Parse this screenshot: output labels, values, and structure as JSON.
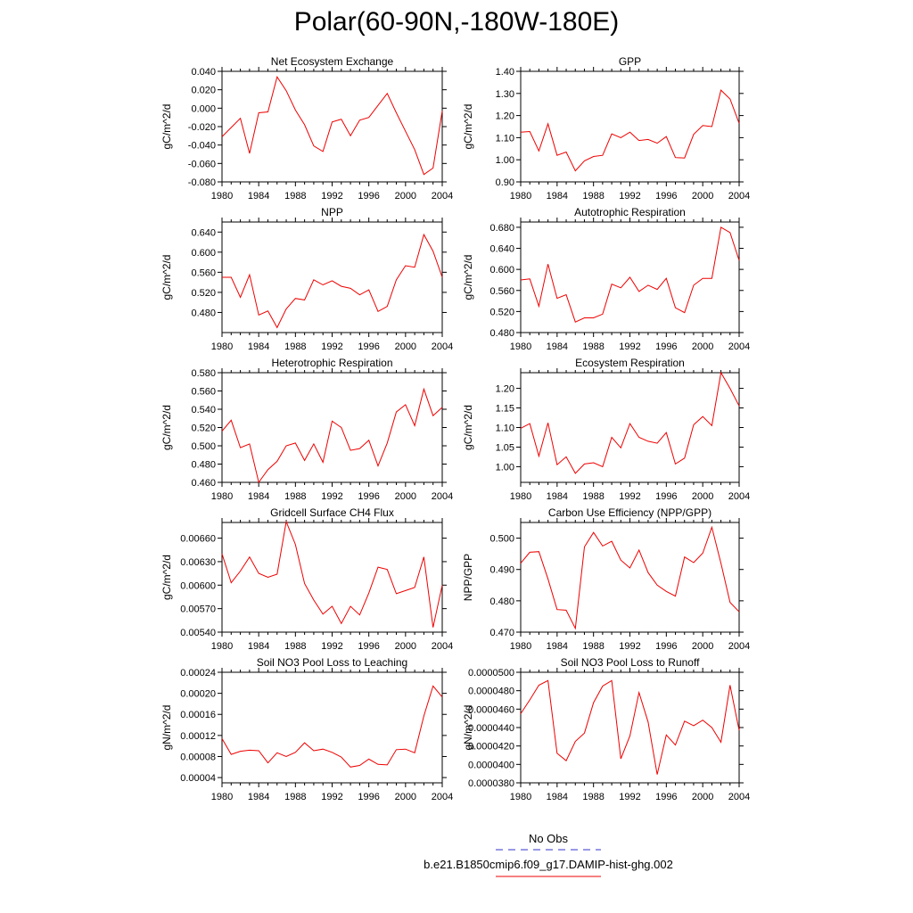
{
  "figure": {
    "title": "Polar(60-90N,-180W-180E)",
    "line_color": "#ee0000",
    "obs_color": "#3333cc"
  },
  "legend": {
    "obs_label": "No Obs",
    "model_label": "b.e21.B1850cmip6.f09_g17.DAMIP-hist-ghg.002"
  },
  "chart_data": [
    {
      "type": "line",
      "title": "Net Ecosystem Exchange",
      "ylabel": "gC/m^2/d",
      "xlim": [
        1980,
        2004
      ],
      "xticks": [
        "1980",
        "1984",
        "1988",
        "1992",
        "1996",
        "2000",
        "2004"
      ],
      "ylim": [
        -0.08,
        0.04
      ],
      "yticks": [
        "-0.080",
        "-0.060",
        "-0.040",
        "-0.020",
        "0.000",
        "0.020",
        "0.040"
      ],
      "x": [
        1980,
        1981,
        1982,
        1983,
        1984,
        1985,
        1986,
        1987,
        1988,
        1989,
        1990,
        1991,
        1992,
        1993,
        1994,
        1995,
        1996,
        1997,
        1998,
        1999,
        2000,
        2001,
        2002,
        2003,
        2004
      ],
      "series": [
        {
          "values": [
            -0.031,
            -0.021,
            -0.011,
            -0.049,
            -0.005,
            -0.004,
            0.034,
            0.019,
            -0.002,
            -0.018,
            -0.041,
            -0.047,
            -0.015,
            -0.012,
            -0.03,
            -0.013,
            -0.01,
            0.003,
            0.016,
            -0.005,
            -0.025,
            -0.045,
            -0.072,
            -0.065,
            -0.003
          ]
        }
      ]
    },
    {
      "type": "line",
      "title": "GPP",
      "ylabel": "gC/m^2/d",
      "xlim": [
        1980,
        2004
      ],
      "xticks": [
        "1980",
        "1984",
        "1988",
        "1992",
        "1996",
        "2000",
        "2004"
      ],
      "ylim": [
        0.9,
        1.4
      ],
      "yticks": [
        "0.90",
        "1.00",
        "1.10",
        "1.20",
        "1.30",
        "1.40"
      ],
      "x": [
        1980,
        1981,
        1982,
        1983,
        1984,
        1985,
        1986,
        1987,
        1988,
        1989,
        1990,
        1991,
        1992,
        1993,
        1994,
        1995,
        1996,
        1997,
        1998,
        1999,
        2000,
        2001,
        2002,
        2003,
        2004
      ],
      "series": [
        {
          "values": [
            1.125,
            1.128,
            1.04,
            1.163,
            1.02,
            1.035,
            0.95,
            0.995,
            1.015,
            1.02,
            1.117,
            1.1,
            1.125,
            1.087,
            1.092,
            1.075,
            1.105,
            1.01,
            1.008,
            1.115,
            1.155,
            1.15,
            1.315,
            1.275,
            1.165
          ]
        }
      ]
    },
    {
      "type": "line",
      "title": "NPP",
      "ylabel": "gC/m^2/d",
      "xlim": [
        1980,
        2004
      ],
      "xticks": [
        "1980",
        "1984",
        "1988",
        "1992",
        "1996",
        "2000",
        "2004"
      ],
      "ylim": [
        0.44,
        0.66
      ],
      "yticks": [
        "0.480",
        "0.520",
        "0.560",
        "0.600",
        "0.640"
      ],
      "x": [
        1980,
        1981,
        1982,
        1983,
        1984,
        1985,
        1986,
        1987,
        1988,
        1989,
        1990,
        1991,
        1992,
        1993,
        1994,
        1995,
        1996,
        1997,
        1998,
        1999,
        2000,
        2001,
        2002,
        2003,
        2004
      ],
      "series": [
        {
          "values": [
            0.55,
            0.55,
            0.51,
            0.555,
            0.475,
            0.483,
            0.45,
            0.487,
            0.508,
            0.505,
            0.545,
            0.535,
            0.543,
            0.532,
            0.528,
            0.515,
            0.525,
            0.482,
            0.492,
            0.545,
            0.573,
            0.57,
            0.635,
            0.602,
            0.55
          ]
        }
      ]
    },
    {
      "type": "line",
      "title": "Autotrophic Respiration",
      "ylabel": "gC/m^2/d",
      "xlim": [
        1980,
        2004
      ],
      "xticks": [
        "1980",
        "1984",
        "1988",
        "1992",
        "1996",
        "2000",
        "2004"
      ],
      "ylim": [
        0.48,
        0.69
      ],
      "yticks": [
        "0.480",
        "0.520",
        "0.560",
        "0.600",
        "0.640",
        "0.680"
      ],
      "x": [
        1980,
        1981,
        1982,
        1983,
        1984,
        1985,
        1986,
        1987,
        1988,
        1989,
        1990,
        1991,
        1992,
        1993,
        1994,
        1995,
        1996,
        1997,
        1998,
        1999,
        2000,
        2001,
        2002,
        2003,
        2004
      ],
      "series": [
        {
          "values": [
            0.58,
            0.582,
            0.53,
            0.61,
            0.545,
            0.552,
            0.5,
            0.508,
            0.508,
            0.515,
            0.572,
            0.565,
            0.585,
            0.558,
            0.57,
            0.562,
            0.583,
            0.527,
            0.518,
            0.57,
            0.583,
            0.583,
            0.68,
            0.67,
            0.617
          ]
        }
      ]
    },
    {
      "type": "line",
      "title": "Heterotrophic Respiration",
      "ylabel": "gC/m^2/d",
      "xlim": [
        1980,
        2004
      ],
      "xticks": [
        "1980",
        "1984",
        "1988",
        "1992",
        "1996",
        "2000",
        "2004"
      ],
      "ylim": [
        0.46,
        0.58
      ],
      "yticks": [
        "0.460",
        "0.480",
        "0.500",
        "0.520",
        "0.540",
        "0.560",
        "0.580"
      ],
      "x": [
        1980,
        1981,
        1982,
        1983,
        1984,
        1985,
        1986,
        1987,
        1988,
        1989,
        1990,
        1991,
        1992,
        1993,
        1994,
        1995,
        1996,
        1997,
        1998,
        1999,
        2000,
        2001,
        2002,
        2003,
        2004
      ],
      "series": [
        {
          "values": [
            0.516,
            0.528,
            0.498,
            0.502,
            0.46,
            0.474,
            0.483,
            0.5,
            0.503,
            0.484,
            0.502,
            0.482,
            0.527,
            0.52,
            0.495,
            0.497,
            0.506,
            0.478,
            0.503,
            0.537,
            0.545,
            0.522,
            0.562,
            0.533,
            0.542
          ]
        }
      ]
    },
    {
      "type": "line",
      "title": "Ecosystem Respiration",
      "ylabel": "gC/m^2/d",
      "xlim": [
        1980,
        2004
      ],
      "xticks": [
        "1980",
        "1984",
        "1988",
        "1992",
        "1996",
        "2000",
        "2004"
      ],
      "ylim": [
        0.96,
        1.24
      ],
      "yticks": [
        "1.00",
        "1.05",
        "1.10",
        "1.15",
        "1.20"
      ],
      "x": [
        1980,
        1981,
        1982,
        1983,
        1984,
        1985,
        1986,
        1987,
        1988,
        1989,
        1990,
        1991,
        1992,
        1993,
        1994,
        1995,
        1996,
        1997,
        1998,
        1999,
        2000,
        2001,
        2002,
        2003,
        2004
      ],
      "series": [
        {
          "values": [
            1.098,
            1.11,
            1.027,
            1.112,
            1.005,
            1.025,
            0.983,
            1.007,
            1.01,
            1.0,
            1.075,
            1.048,
            1.11,
            1.075,
            1.065,
            1.06,
            1.087,
            1.007,
            1.022,
            1.107,
            1.128,
            1.105,
            1.24,
            1.2,
            1.155
          ]
        }
      ]
    },
    {
      "type": "line",
      "title": "Gridcell Surface CH4 Flux",
      "ylabel": "gC/m^2/d",
      "xlim": [
        1980,
        2004
      ],
      "xticks": [
        "1980",
        "1984",
        "1988",
        "1992",
        "1996",
        "2000",
        "2004"
      ],
      "ylim": [
        0.0054,
        0.0068
      ],
      "yticks": [
        "0.00540",
        "0.00570",
        "0.00600",
        "0.00630",
        "0.00660"
      ],
      "x": [
        1980,
        1981,
        1982,
        1983,
        1984,
        1985,
        1986,
        1987,
        1988,
        1989,
        1990,
        1991,
        1992,
        1993,
        1994,
        1995,
        1996,
        1997,
        1998,
        1999,
        2000,
        2001,
        2002,
        2003,
        2004
      ],
      "series": [
        {
          "values": [
            0.0064,
            0.00603,
            0.00618,
            0.00636,
            0.00615,
            0.0061,
            0.00614,
            0.00681,
            0.00652,
            0.00602,
            0.00581,
            0.00563,
            0.00573,
            0.00551,
            0.00573,
            0.00562,
            0.0059,
            0.00623,
            0.0062,
            0.00589,
            0.00593,
            0.00597,
            0.00636,
            0.00546,
            0.006
          ]
        }
      ]
    },
    {
      "type": "line",
      "title": "Carbon Use Efficiency (NPP/GPP)",
      "ylabel": "NPP/GPP",
      "xlim": [
        1980,
        2004
      ],
      "xticks": [
        "1980",
        "1984",
        "1988",
        "1992",
        "1996",
        "2000",
        "2004"
      ],
      "ylim": [
        0.47,
        0.505
      ],
      "yticks": [
        "0.470",
        "0.480",
        "0.490",
        "0.500"
      ],
      "x": [
        1980,
        1981,
        1982,
        1983,
        1984,
        1985,
        1986,
        1987,
        1988,
        1989,
        1990,
        1991,
        1992,
        1993,
        1994,
        1995,
        1996,
        1997,
        1998,
        1999,
        2000,
        2001,
        2002,
        2003,
        2004
      ],
      "series": [
        {
          "values": [
            0.492,
            0.4955,
            0.4957,
            0.487,
            0.4772,
            0.477,
            0.4712,
            0.4972,
            0.5018,
            0.4975,
            0.499,
            0.493,
            0.4905,
            0.4962,
            0.489,
            0.485,
            0.483,
            0.4815,
            0.494,
            0.4922,
            0.4952,
            0.5035,
            0.492,
            0.4795,
            0.4765
          ]
        }
      ]
    },
    {
      "type": "line",
      "title": "Soil NO3 Pool Loss to Leaching",
      "ylabel": "gN/m^2/d",
      "xlim": [
        1980,
        2004
      ],
      "xticks": [
        "1980",
        "1984",
        "1988",
        "1992",
        "1996",
        "2000",
        "2004"
      ],
      "ylim": [
        3e-05,
        0.00024
      ],
      "yticks": [
        "0.00004",
        "0.00008",
        "0.00012",
        "0.00016",
        "0.00020",
        "0.00024"
      ],
      "x": [
        1980,
        1981,
        1982,
        1983,
        1984,
        1985,
        1986,
        1987,
        1988,
        1989,
        1990,
        1991,
        1992,
        1993,
        1994,
        1995,
        1996,
        1997,
        1998,
        1999,
        2000,
        2001,
        2002,
        2003,
        2004
      ],
      "series": [
        {
          "values": [
            0.000114,
            8.4e-05,
            9e-05,
            9.2e-05,
            9.1e-05,
            6.8e-05,
            8.7e-05,
            8e-05,
            8.8e-05,
            0.000106,
            9.1e-05,
            9.4e-05,
            8.8e-05,
            7.9e-05,
            6e-05,
            6.3e-05,
            7.5e-05,
            6.5e-05,
            6.4e-05,
            9.3e-05,
            9.4e-05,
            8.7e-05,
            0.000157,
            0.000214,
            0.000193
          ]
        }
      ]
    },
    {
      "type": "line",
      "title": "Soil NO3 Pool Loss to Runoff",
      "ylabel": "gN/m^2/d",
      "xlim": [
        1980,
        2004
      ],
      "xticks": [
        "1980",
        "1984",
        "1988",
        "1992",
        "1996",
        "2000",
        "2004"
      ],
      "ylim": [
        3.8e-05,
        5e-05
      ],
      "yticks": [
        "0.0000380",
        "0.0000400",
        "0.0000420",
        "0.0000440",
        "0.0000460",
        "0.0000480",
        "0.0000500"
      ],
      "x": [
        1980,
        1981,
        1982,
        1983,
        1984,
        1985,
        1986,
        1987,
        1988,
        1989,
        1990,
        1991,
        1992,
        1993,
        1994,
        1995,
        1996,
        1997,
        1998,
        1999,
        2000,
        2001,
        2002,
        2003,
        2004
      ],
      "series": [
        {
          "values": [
            4.55e-05,
            4.7e-05,
            4.86e-05,
            4.91e-05,
            4.12e-05,
            4.04e-05,
            4.25e-05,
            4.34e-05,
            4.67e-05,
            4.85e-05,
            4.91e-05,
            4.06e-05,
            4.31e-05,
            4.78e-05,
            4.46e-05,
            3.89e-05,
            4.32e-05,
            4.21e-05,
            4.47e-05,
            4.42e-05,
            4.48e-05,
            4.4e-05,
            4.24e-05,
            4.86e-05,
            4.37e-05
          ]
        }
      ]
    }
  ]
}
